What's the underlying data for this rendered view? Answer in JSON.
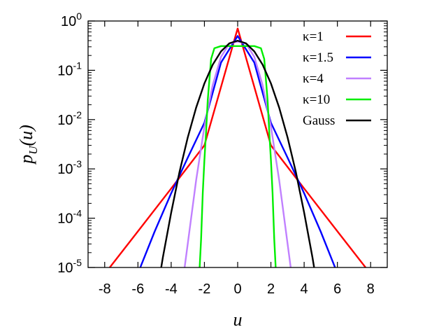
{
  "chart_data": {
    "type": "line",
    "title": "",
    "xlabel": "u",
    "ylabel": "p",
    "ylabel_sub": "U",
    "ylabel_arg": "(u)",
    "xlim": [
      -9,
      9
    ],
    "ylim": [
      1e-05,
      1
    ],
    "yscale": "log",
    "grid": false,
    "legend_position": "top-right",
    "x_ticks": [
      -8,
      -6,
      -4,
      -2,
      0,
      2,
      4,
      6,
      8
    ],
    "x_tick_labels": [
      "-8",
      "-6",
      "-4",
      "-2",
      "0",
      "2",
      "4",
      "6",
      "8"
    ],
    "y_ticks": [
      {
        "value": 1,
        "base": "10",
        "exp": "0"
      },
      {
        "value": 0.1,
        "base": "10",
        "exp": "-1"
      },
      {
        "value": 0.01,
        "base": "10",
        "exp": "-2"
      },
      {
        "value": 0.001,
        "base": "10",
        "exp": "-3"
      },
      {
        "value": 0.0001,
        "base": "10",
        "exp": "-4"
      },
      {
        "value": 1e-05,
        "base": "10",
        "exp": "-5"
      }
    ],
    "series": [
      {
        "name": "κ=1",
        "color": "#ff0000",
        "x": [
          -8,
          -6,
          -4,
          -2,
          0,
          2,
          4,
          6,
          8
        ],
        "y": [
          7.4e-06,
          5.4e-05,
          0.0004,
          0.003,
          0.707,
          0.003,
          0.0004,
          5.4e-05,
          7.4e-06
        ]
      },
      {
        "name": "κ=1.5",
        "color": "#0000ff",
        "x": [
          -6,
          -5,
          -4,
          -3,
          -2,
          -1,
          0,
          1,
          2,
          3,
          4,
          5,
          6
        ],
        "y": [
          7.6e-06,
          5.3e-05,
          0.00032,
          0.0017,
          0.0086,
          0.144,
          0.496,
          0.144,
          0.0086,
          0.0017,
          0.00032,
          5.3e-05,
          7.6e-06
        ]
      },
      {
        "name": "κ=4",
        "color": "#c080ff",
        "x": [
          -3.2,
          -3,
          -2.5,
          -2,
          -1.5,
          -1,
          -0.5,
          0,
          0.5,
          1,
          1.5,
          2,
          2.5,
          3,
          3.2
        ],
        "y": [
          9.5e-06,
          3.1e-05,
          0.00059,
          0.0072,
          0.05,
          0.188,
          0.348,
          0.383,
          0.348,
          0.188,
          0.05,
          0.0072,
          0.00059,
          3.1e-05,
          9.5e-06
        ]
      },
      {
        "name": "κ=10",
        "color": "#00ee00",
        "x": [
          -2.4,
          -2.3,
          -2.2,
          -2.1,
          -2,
          -1.9,
          -1.8,
          -1.6,
          -1.4,
          -1,
          0,
          1,
          1.4,
          1.6,
          1.8,
          1.9,
          2,
          2.1,
          2.2,
          2.3,
          2.4
        ],
        "y": [
          3.2e-06,
          8.2e-06,
          3.8e-05,
          0.00033,
          0.0015,
          0.0056,
          0.025,
          0.17,
          0.28,
          0.31,
          0.31,
          0.31,
          0.28,
          0.17,
          0.025,
          0.0056,
          0.0015,
          0.00033,
          3.8e-05,
          8.2e-06,
          3.2e-06
        ]
      },
      {
        "name": "Gauss",
        "color": "#000000",
        "x": [
          -4.8,
          -4.5,
          -4,
          -3.5,
          -3,
          -2.5,
          -2,
          -1.5,
          -1,
          -0.5,
          0,
          0.5,
          1,
          1.5,
          2,
          2.5,
          3,
          3.5,
          4,
          4.5,
          4.8
        ],
        "y": [
          3.9e-06,
          1.6e-05,
          0.00013,
          0.00087,
          0.0044,
          0.0175,
          0.054,
          0.13,
          0.242,
          0.352,
          0.399,
          0.352,
          0.242,
          0.13,
          0.054,
          0.0175,
          0.0044,
          0.00087,
          0.00013,
          1.6e-05,
          3.9e-06
        ]
      }
    ]
  }
}
